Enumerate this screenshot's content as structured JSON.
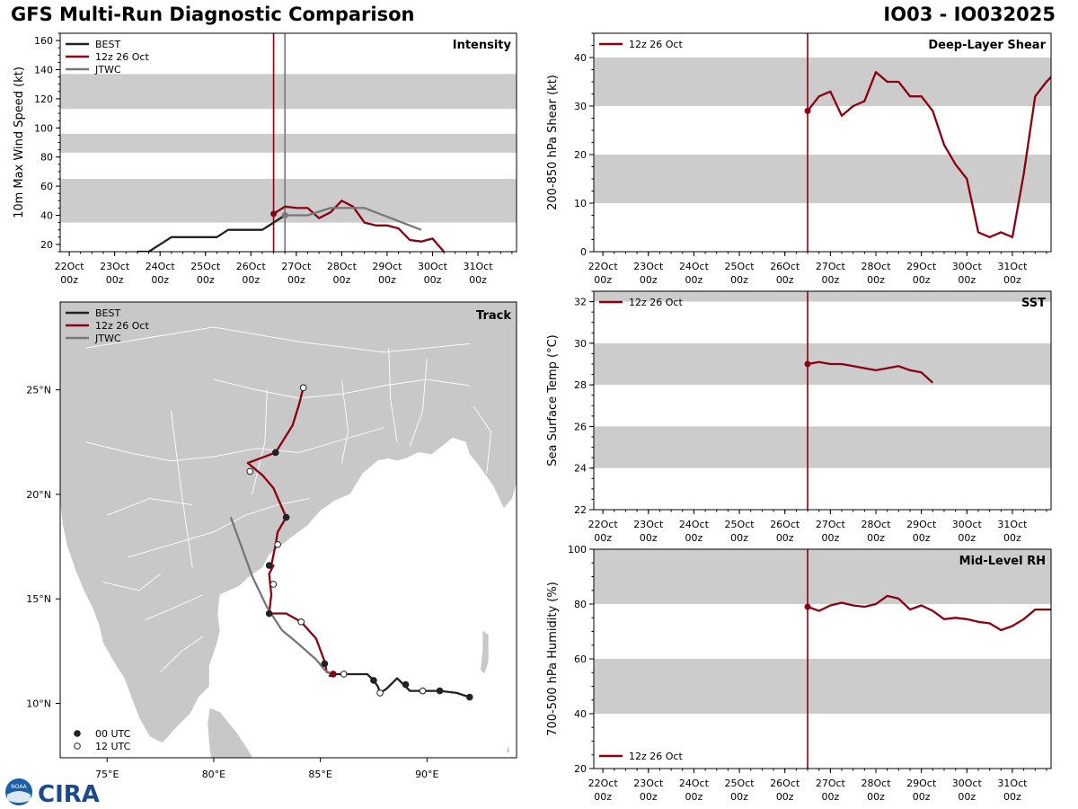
{
  "header": {
    "title": "GFS Multi-Run Diagnostic Comparison",
    "storm_id": "IO03 - IO032025"
  },
  "logo": {
    "text": "CIRA",
    "badge": "NOAA"
  },
  "time_axis": {
    "tick_labels": [
      "22Oct\n00z",
      "23Oct\n00z",
      "24Oct\n00z",
      "25Oct\n00z",
      "26Oct\n00z",
      "27Oct\n00z",
      "28Oct\n00z",
      "29Oct\n00z",
      "30Oct\n00z",
      "31Oct\n00z"
    ],
    "start_day": 21.8,
    "end_day": 31.85,
    "init_day": 26.5
  },
  "colors": {
    "best": "#222222",
    "gfs": "#8b0012",
    "jtwc": "#777777",
    "band": "#cccccc",
    "land": "#c8c8c8",
    "border": "#ffffff"
  },
  "chart_data": [
    {
      "id": "intensity",
      "type": "line",
      "title": "Intensity",
      "ylabel": "10m Max Wind Speed (kt)",
      "ylim": [
        15,
        165
      ],
      "yticks": [
        20,
        40,
        60,
        80,
        100,
        120,
        140,
        160
      ],
      "bands": [
        [
          35,
          65
        ],
        [
          83,
          96
        ],
        [
          113,
          137
        ]
      ],
      "legend": [
        "BEST",
        "12z 26 Oct",
        "JTWC"
      ],
      "jtwc_vline_day": 26.75,
      "series": [
        {
          "name": "BEST",
          "key": "best",
          "x": [
            23.5,
            23.75,
            24.25,
            24.5,
            24.75,
            25.0,
            25.25,
            25.5,
            25.75,
            26.0,
            26.25,
            26.5,
            26.75
          ],
          "y": [
            15,
            15,
            25,
            25,
            25,
            25,
            25,
            30,
            30,
            30,
            30,
            35,
            40
          ]
        },
        {
          "name": "12z 26 Oct",
          "key": "gfs",
          "x": [
            26.5,
            26.75,
            27.0,
            27.25,
            27.5,
            27.75,
            28.0,
            28.25,
            28.5,
            28.75,
            29.0,
            29.25,
            29.5,
            29.75,
            30.0,
            30.25
          ],
          "y": [
            41,
            46,
            45,
            45,
            38,
            42,
            50,
            46,
            35,
            33,
            33,
            31,
            23,
            22,
            24,
            15
          ]
        },
        {
          "name": "JTWC",
          "key": "jtwc",
          "x": [
            26.75,
            27.25,
            27.75,
            28.0,
            28.5,
            29.75
          ],
          "y": [
            40,
            40,
            45,
            45,
            45,
            30
          ]
        }
      ],
      "init_marker": {
        "x": 26.5,
        "y": 41
      },
      "jtwc_marker": {
        "x": 26.75,
        "y": 40
      }
    },
    {
      "id": "shear",
      "type": "line",
      "title": "Deep-Layer Shear",
      "ylabel": "200-850 hPa Shear (kt)",
      "ylim": [
        0,
        45
      ],
      "yticks": [
        0,
        10,
        20,
        30,
        40
      ],
      "bands": [
        [
          10,
          20
        ],
        [
          30,
          40
        ]
      ],
      "legend": [
        "12z 26 Oct"
      ],
      "series": [
        {
          "name": "12z 26 Oct",
          "key": "gfs",
          "x": [
            26.5,
            26.75,
            27.0,
            27.25,
            27.5,
            27.75,
            28.0,
            28.25,
            28.5,
            28.75,
            29.0,
            29.25,
            29.5,
            29.75,
            30.0,
            30.25,
            30.5,
            30.75,
            31.0,
            31.25,
            31.5,
            31.75,
            31.85
          ],
          "y": [
            29,
            32,
            33,
            28,
            30,
            31,
            37,
            35,
            35,
            32,
            32,
            29,
            22,
            18,
            15,
            4,
            3,
            4,
            3,
            16,
            32,
            35,
            36
          ]
        }
      ],
      "init_marker": {
        "x": 26.5,
        "y": 29
      }
    },
    {
      "id": "sst",
      "type": "line",
      "title": "SST",
      "ylabel": "Sea Surface Temp (°C)",
      "ylim": [
        22,
        32.5
      ],
      "yticks": [
        22,
        24,
        26,
        28,
        30,
        32
      ],
      "bands": [
        [
          24,
          26
        ],
        [
          28,
          30
        ],
        [
          32,
          34
        ]
      ],
      "legend": [
        "12z 26 Oct"
      ],
      "series": [
        {
          "name": "12z 26 Oct",
          "key": "gfs",
          "x": [
            26.5,
            26.75,
            27.0,
            27.25,
            27.5,
            27.75,
            28.0,
            28.25,
            28.5,
            28.75,
            29.0,
            29.25
          ],
          "y": [
            29.0,
            29.1,
            29.0,
            29.0,
            28.9,
            28.8,
            28.7,
            28.8,
            28.9,
            28.7,
            28.6,
            28.1
          ]
        }
      ],
      "init_marker": {
        "x": 26.5,
        "y": 29.0
      }
    },
    {
      "id": "rh",
      "type": "line",
      "title": "Mid-Level RH",
      "ylabel": "700-500 hPa Humidity (%)",
      "ylim": [
        20,
        100
      ],
      "yticks": [
        20,
        40,
        60,
        80,
        100
      ],
      "bands": [
        [
          40,
          60
        ],
        [
          80,
          100
        ]
      ],
      "legend": [
        "12z 26 Oct"
      ],
      "series": [
        {
          "name": "12z 26 Oct",
          "key": "gfs",
          "x": [
            26.5,
            26.75,
            27.0,
            27.25,
            27.5,
            27.75,
            28.0,
            28.25,
            28.5,
            28.75,
            29.0,
            29.25,
            29.5,
            29.75,
            30.0,
            30.25,
            30.5,
            30.75,
            31.0,
            31.25,
            31.5,
            31.75,
            31.85
          ],
          "y": [
            79,
            77.5,
            79.5,
            80.5,
            79.5,
            79,
            80,
            83,
            82,
            78,
            79.5,
            77.5,
            74.5,
            75,
            74.5,
            73.5,
            73,
            70.5,
            72,
            74.5,
            78,
            78,
            78
          ]
        }
      ],
      "init_marker": {
        "x": 26.5,
        "y": 79
      }
    },
    {
      "id": "track",
      "type": "scatter",
      "title": "Track",
      "xlim": [
        72.8,
        94.2
      ],
      "ylim": [
        7.4,
        29.2
      ],
      "xticks": [
        75,
        80,
        85,
        90
      ],
      "xtick_labels": [
        "75°E",
        "80°E",
        "85°E",
        "90°E"
      ],
      "yticks": [
        10,
        15,
        20,
        25
      ],
      "ytick_labels": [
        "10°N",
        "15°N",
        "20°N",
        "25°N"
      ],
      "legend": [
        "BEST",
        "12z 26 Oct",
        "JTWC"
      ],
      "marker_legend": [
        "00 UTC",
        "12 UTC"
      ],
      "series": [
        {
          "name": "BEST",
          "key": "best",
          "lon": [
            92.0,
            91.4,
            90.6,
            89.8,
            89.2,
            88.9,
            88.6,
            88.1,
            87.8,
            87.7,
            87.5,
            87.2,
            86.1,
            85.6,
            85.4
          ],
          "lat": [
            10.3,
            10.5,
            10.6,
            10.6,
            10.6,
            10.9,
            11.2,
            10.7,
            10.5,
            10.8,
            11.1,
            11.4,
            11.4,
            11.4,
            11.3
          ],
          "markers": [
            [
              92.0,
              10.3,
              "00"
            ],
            [
              90.6,
              10.6,
              "00"
            ],
            [
              89.8,
              10.6,
              "12"
            ],
            [
              89.0,
              10.9,
              "00"
            ],
            [
              87.8,
              10.5,
              "12"
            ],
            [
              87.5,
              11.1,
              "00"
            ],
            [
              86.1,
              11.4,
              "12"
            ]
          ]
        },
        {
          "name": "12z 26 Oct",
          "key": "gfs",
          "lon": [
            85.6,
            85.3,
            85.2,
            84.8,
            84.1,
            83.4,
            82.6,
            82.7,
            82.6,
            82.8,
            82.7,
            82.9,
            83.0,
            83.4,
            82.8,
            82.3,
            81.6,
            82.9,
            83.7,
            84.0,
            84.2
          ],
          "lat": [
            11.4,
            11.5,
            12.0,
            13.1,
            13.9,
            14.3,
            14.3,
            15.2,
            16.2,
            16.6,
            16.6,
            17.6,
            18.2,
            18.9,
            20.3,
            20.9,
            21.5,
            22.0,
            23.3,
            24.3,
            25.1
          ],
          "markers": [
            [
              85.2,
              11.9,
              "00"
            ],
            [
              84.1,
              13.9,
              "12"
            ],
            [
              82.6,
              14.3,
              "00"
            ],
            [
              82.8,
              15.7,
              "12"
            ],
            [
              82.6,
              16.6,
              "00"
            ],
            [
              83.0,
              17.6,
              "12"
            ],
            [
              83.4,
              18.9,
              "00"
            ],
            [
              81.7,
              21.1,
              "12"
            ],
            [
              82.9,
              22.0,
              "00"
            ],
            [
              84.2,
              25.1,
              "12"
            ]
          ]
        },
        {
          "name": "JTWC",
          "key": "jtwc",
          "lon": [
            85.5,
            85.2,
            84.8,
            83.8,
            83.2,
            82.5,
            81.8,
            81.3,
            80.8
          ],
          "lat": [
            11.4,
            11.6,
            12.1,
            13.0,
            13.5,
            14.6,
            16.1,
            17.5,
            18.9
          ],
          "markers": []
        }
      ],
      "init_marker": {
        "lon": 85.6,
        "lat": 11.4
      }
    }
  ]
}
